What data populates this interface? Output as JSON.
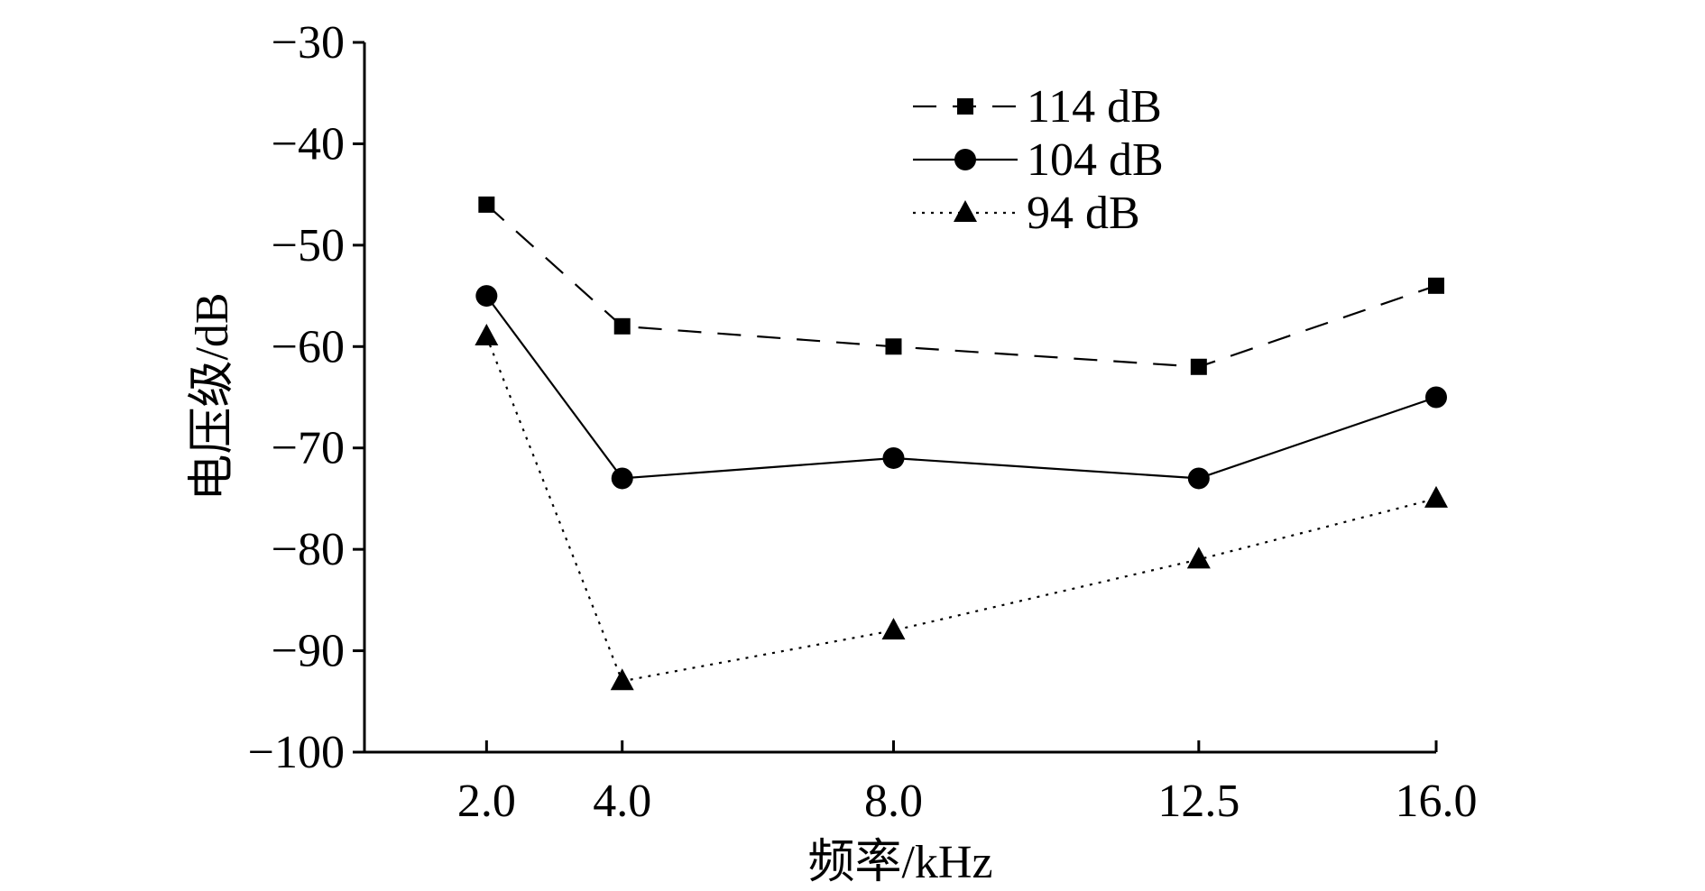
{
  "chart_data": {
    "type": "line",
    "title": "",
    "xlabel": "频率/kHz",
    "ylabel": "电压级/dB",
    "categories": [
      "2.0",
      "4.0",
      "8.0",
      "12.5",
      "16.0"
    ],
    "x": [
      2.0,
      4.0,
      8.0,
      12.5,
      16.0
    ],
    "xlim": [
      0.2,
      16.0
    ],
    "ylim": [
      -100,
      -30
    ],
    "yticks": [
      -30,
      -40,
      -50,
      -60,
      -70,
      -80,
      -90,
      -100
    ],
    "ytick_labels": [
      "−30",
      "−40",
      "−50",
      "−60",
      "−70",
      "−80",
      "−90",
      "−100"
    ],
    "grid": false,
    "legend_position": "top-center",
    "series": [
      {
        "name": "114 dB",
        "values": [
          -46,
          -58,
          -60,
          -62,
          -54
        ],
        "marker": "square",
        "line_style": "dashed",
        "color": "#000000"
      },
      {
        "name": "104 dB",
        "values": [
          -55,
          -73,
          -71,
          -73,
          -65
        ],
        "marker": "circle",
        "line_style": "solid",
        "color": "#000000"
      },
      {
        "name": "94 dB",
        "values": [
          -59,
          -93,
          -88,
          -81,
          -75
        ],
        "marker": "triangle",
        "line_style": "dotted",
        "color": "#000000"
      }
    ]
  }
}
